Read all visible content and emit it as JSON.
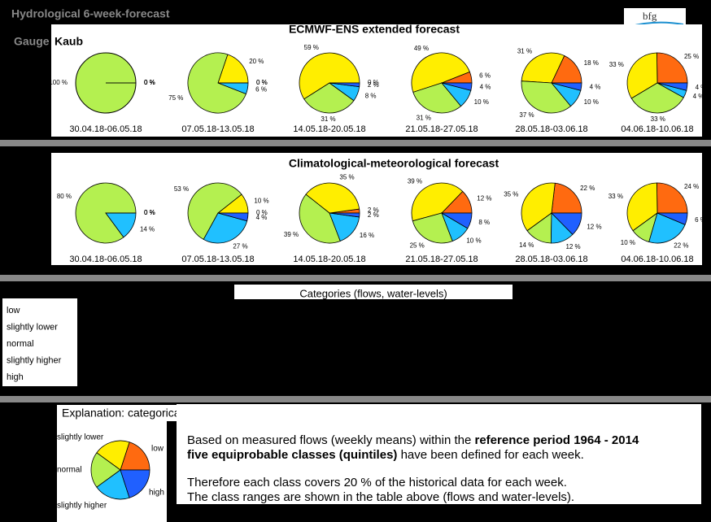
{
  "header": {
    "title": "Hydrological 6-week-forecast",
    "gauge_label": "Gauge",
    "gauge_name": "Kaub",
    "logo": "bfg"
  },
  "panels": [
    {
      "title": "ECMWF-ENS extended forecast"
    },
    {
      "title": "Climatological-meteorological forecast"
    }
  ],
  "category_colors": [
    "#ff6a10",
    "#ffee00",
    "#b4f050",
    "#20c0ff",
    "#2060ff"
  ],
  "chart_data": [
    {
      "type": "pie",
      "title": "30.04.18-06.05.18",
      "values": [
        0,
        0,
        100,
        0,
        0
      ],
      "value_labels": [
        "0 %",
        "0 %",
        "100 %",
        "0 %",
        "0 %"
      ]
    },
    {
      "type": "pie",
      "title": "07.05.18-13.05.18",
      "values": [
        0,
        20,
        75,
        6,
        0
      ],
      "value_labels": [
        "0 %",
        "20 %",
        "75 %",
        "6 %",
        "0 %"
      ]
    },
    {
      "type": "pie",
      "title": "14.05.18-20.05.18",
      "values": [
        0,
        59,
        31,
        8,
        2
      ],
      "value_labels": [
        "0 %",
        "59 %",
        "31 %",
        "8 %",
        "2 %"
      ]
    },
    {
      "type": "pie",
      "title": "21.05.18-27.05.18",
      "values": [
        6,
        49,
        31,
        10,
        4
      ],
      "value_labels": [
        "6 %",
        "49 %",
        "31 %",
        "10 %",
        "4 %"
      ]
    },
    {
      "type": "pie",
      "title": "28.05.18-03.06.18",
      "values": [
        18,
        31,
        37,
        10,
        4
      ],
      "value_labels": [
        "18 %",
        "31 %",
        "37 %",
        "10 %",
        "4 %"
      ]
    },
    {
      "type": "pie",
      "title": "04.06.18-10.06.18",
      "values": [
        25,
        33,
        33,
        4,
        4
      ],
      "value_labels": [
        "25 %",
        "33 %",
        "33 %",
        "4 %",
        "4 %"
      ]
    },
    {
      "type": "pie",
      "title": "30.04.18-06.05.18",
      "values": [
        0,
        0,
        80,
        14,
        0
      ],
      "value_labels": [
        "0 %",
        "0 %",
        "80 %",
        "14 %",
        "0 %"
      ]
    },
    {
      "type": "pie",
      "title": "07.05.18-13.05.18",
      "values": [
        0,
        10,
        53,
        27,
        4
      ],
      "value_labels": [
        "0 %",
        "10 %",
        "53 %",
        "27 %",
        "4 %"
      ]
    },
    {
      "type": "pie",
      "title": "14.05.18-20.05.18",
      "values": [
        2,
        35,
        39,
        16,
        2
      ],
      "value_labels": [
        "2 %",
        "35 %",
        "39 %",
        "16 %",
        "2 %"
      ]
    },
    {
      "type": "pie",
      "title": "21.05.18-27.05.18",
      "values": [
        12,
        39,
        25,
        10,
        8
      ],
      "value_labels": [
        "12 %",
        "39 %",
        "25 %",
        "10 %",
        "8 %"
      ]
    },
    {
      "type": "pie",
      "title": "28.05.18-03.06.18",
      "values": [
        22,
        35,
        14,
        12,
        12
      ],
      "value_labels": [
        "22 %",
        "35 %",
        "14 %",
        "12 %",
        "12 %"
      ]
    },
    {
      "type": "pie",
      "title": "04.06.18-10.06.18",
      "values": [
        24,
        33,
        10,
        22,
        6
      ],
      "value_labels": [
        "24 %",
        "33 %",
        "10 %",
        "22 %",
        "6 %"
      ]
    }
  ],
  "categories_table": {
    "title": "Categories (flows, water-levels)",
    "rows": [
      "low",
      "slightly lower",
      "normal",
      "slightly higher",
      "high"
    ]
  },
  "explanation": {
    "title": "Explanation: categorical forecast",
    "pie_labels": [
      "low",
      "slightly lower",
      "normal",
      "slightly higher",
      "high"
    ],
    "text1a": "Based on measured flows (weekly means) within the ",
    "text1b": "reference period 1964 - 2014",
    "text1c": "five equiprobable classes (quintiles)",
    "text1d": " have been defined for each week.",
    "text2": "Therefore each class covers 20 % of the historical data for each week.",
    "text3": "The class ranges are shown in the table above (flows and water-levels)."
  }
}
